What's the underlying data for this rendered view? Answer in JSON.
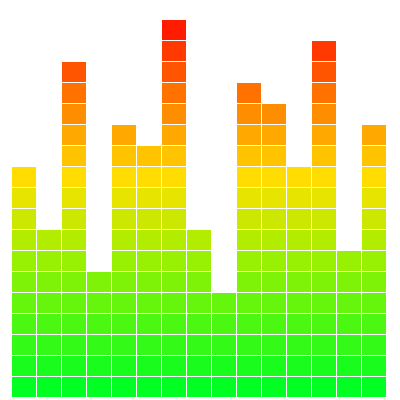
{
  "visualizer": {
    "segments_max": 19,
    "levels": [
      11,
      8,
      16,
      6,
      13,
      12,
      18,
      8,
      5,
      15,
      14,
      11,
      17,
      7,
      13
    ],
    "color_stops": [
      {
        "at": 0.0,
        "color": "#00ff22"
      },
      {
        "at": 0.35,
        "color": "#a0f000"
      },
      {
        "at": 0.55,
        "color": "#ffe000"
      },
      {
        "at": 0.75,
        "color": "#ff8000"
      },
      {
        "at": 1.0,
        "color": "#ff0000"
      }
    ]
  }
}
